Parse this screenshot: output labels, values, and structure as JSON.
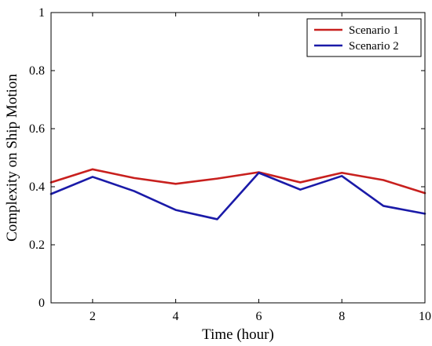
{
  "chart_data": {
    "type": "line",
    "xlabel": "Time (hour)",
    "ylabel": "Complexity on Ship Motion",
    "xlim": [
      1,
      10
    ],
    "ylim": [
      0,
      1
    ],
    "xticks": [
      2,
      4,
      6,
      8,
      10
    ],
    "yticks": [
      0,
      0.2,
      0.4,
      0.6,
      0.8,
      1
    ],
    "ytick_labels": [
      "0",
      "0.2",
      "0.4",
      "0.6",
      "0.8",
      "1"
    ],
    "xtick_labels": [
      "2",
      "4",
      "6",
      "8",
      "10"
    ],
    "grid": false,
    "legend_position": "top-right",
    "x": [
      1,
      2,
      3,
      4,
      5,
      6,
      7,
      8,
      9,
      10
    ],
    "series": [
      {
        "name": "Scenario 1",
        "color": "#c8201e",
        "values": [
          0.415,
          0.46,
          0.43,
          0.41,
          0.428,
          0.45,
          0.415,
          0.448,
          0.423,
          0.378
        ]
      },
      {
        "name": "Scenario 2",
        "color": "#1a1aa8",
        "values": [
          0.375,
          0.434,
          0.385,
          0.32,
          0.288,
          0.448,
          0.39,
          0.437,
          0.334,
          0.307
        ]
      }
    ]
  }
}
